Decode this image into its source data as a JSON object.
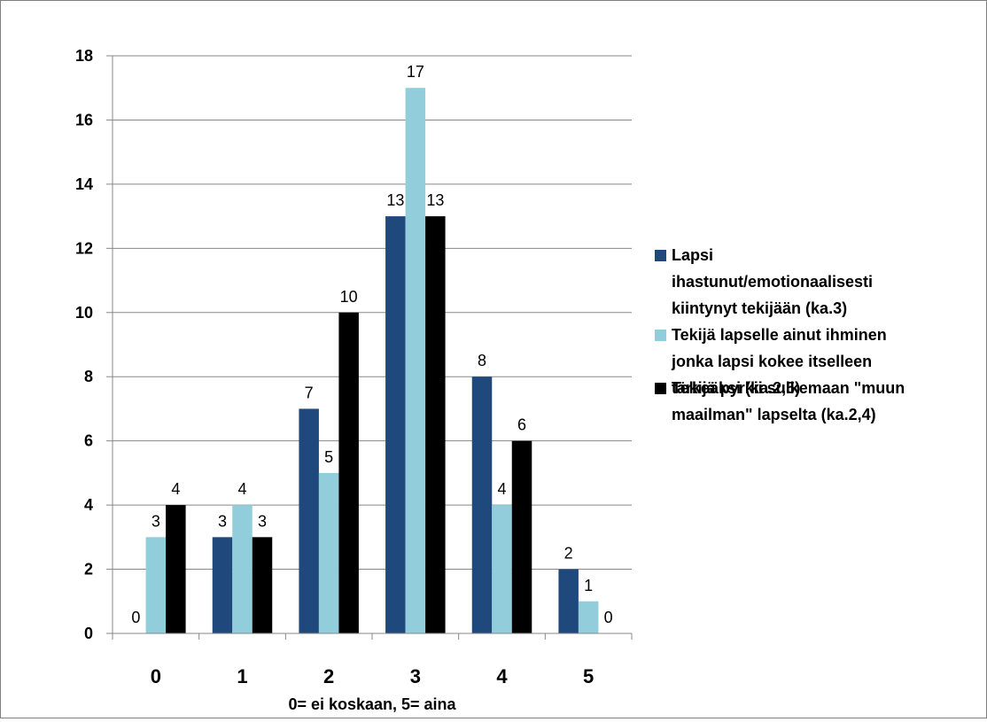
{
  "chart_data": {
    "type": "bar",
    "title": "",
    "xlabel": "0= ei koskaan, 5= aina",
    "ylabel": "",
    "categories": [
      "0",
      "1",
      "2",
      "3",
      "4",
      "5"
    ],
    "ylim": [
      0,
      18
    ],
    "yticks": [
      0,
      2,
      4,
      6,
      8,
      10,
      12,
      14,
      16,
      18
    ],
    "grid": true,
    "legend_position": "right",
    "series": [
      {
        "name": "Lapsi ihastunut/emotionaalisesti kiintynyt tekijään (ka.3)",
        "legend_lines": [
          "Lapsi",
          "ihastunut/emotionaalisesti",
          "kiintynyt tekijään (ka.3)"
        ],
        "color": "#1f497d",
        "values": [
          0,
          3,
          7,
          13,
          8,
          2
        ]
      },
      {
        "name": "Tekijä lapselle ainut ihminen jonka lapsi kokee itselleen tärkeäksi (ka.2,5)",
        "legend_lines": [
          "Tekijä lapselle ainut ihminen",
          "jonka lapsi kokee itselleen",
          "tärkeäksi (ka.2,5)"
        ],
        "color": "#92cddc",
        "values": [
          3,
          4,
          5,
          17,
          4,
          1
        ]
      },
      {
        "name": "Tekijä pyrkii sulkemaan \"muun maailman\" lapselta (ka.2,4)",
        "legend_lines": [
          "Tekijä pyrkii sulkemaan \"muun",
          "maailman\" lapselta (ka.2,4)"
        ],
        "color": "#000000",
        "values": [
          4,
          3,
          10,
          13,
          6,
          0
        ]
      }
    ]
  }
}
